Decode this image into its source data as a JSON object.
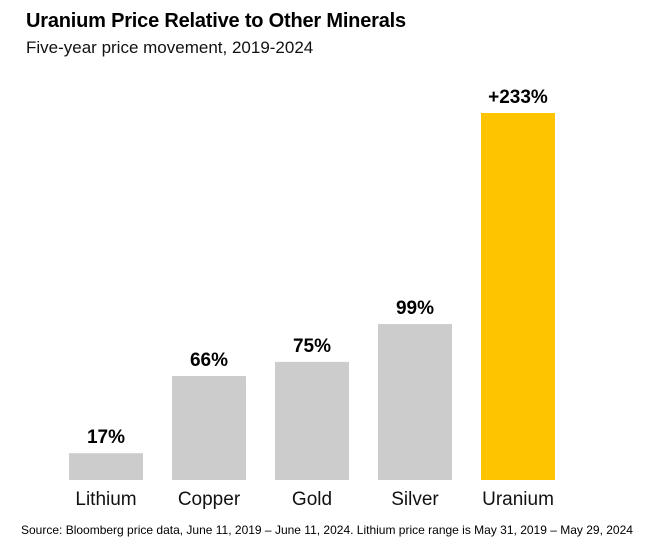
{
  "chart_data": {
    "type": "bar",
    "title": "Uranium Price Relative to Other Minerals",
    "subtitle": "Five-year price movement, 2019-2024",
    "categories": [
      "Lithium",
      "Copper",
      "Gold",
      "Silver",
      "Uranium"
    ],
    "values": [
      17,
      66,
      75,
      99,
      233
    ],
    "data_labels": [
      "17%",
      "66%",
      "75%",
      "99%",
      "+233%"
    ],
    "colors": [
      "#cccccc",
      "#cccccc",
      "#cccccc",
      "#cccccc",
      "#ffc400"
    ],
    "ylim": [
      0,
      233
    ],
    "grid": false,
    "source": "Source: Bloomberg price data, June 11, 2019 – June 11, 2024. Lithium price range is May 31, 2019 – May 29, 2024"
  }
}
